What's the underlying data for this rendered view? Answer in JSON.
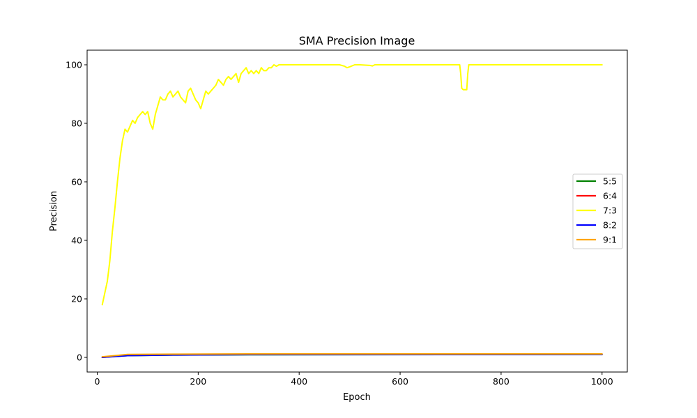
{
  "chart_data": {
    "type": "line",
    "title": "SMA Precision Image",
    "xlabel": "Epoch",
    "ylabel": "Precision",
    "xlim": [
      -20,
      1050
    ],
    "ylim": [
      -5,
      105
    ],
    "xticks": [
      0,
      200,
      400,
      600,
      800,
      1000
    ],
    "yticks": [
      0,
      20,
      40,
      60,
      80,
      100
    ],
    "grid": false,
    "legend_position": "center-right",
    "series": [
      {
        "name": "5:5",
        "color": "#008000",
        "x": [
          10,
          60,
          150,
          300,
          1000
        ],
        "y": [
          0.1,
          0.6,
          0.8,
          0.9,
          1.0
        ]
      },
      {
        "name": "6:4",
        "color": "#ff0000",
        "x": [
          10,
          60,
          150,
          300,
          1000
        ],
        "y": [
          0.0,
          0.7,
          0.9,
          1.0,
          1.1
        ]
      },
      {
        "name": "7:3",
        "color": "#ffff00",
        "x": [
          10,
          15,
          20,
          25,
          30,
          35,
          40,
          45,
          50,
          55,
          60,
          65,
          70,
          75,
          80,
          85,
          90,
          95,
          100,
          105,
          110,
          115,
          120,
          125,
          130,
          135,
          140,
          145,
          150,
          155,
          160,
          165,
          170,
          175,
          180,
          185,
          190,
          195,
          200,
          205,
          210,
          215,
          220,
          225,
          230,
          235,
          240,
          245,
          250,
          255,
          260,
          265,
          270,
          275,
          280,
          285,
          290,
          295,
          300,
          305,
          310,
          315,
          320,
          325,
          330,
          335,
          340,
          345,
          350,
          355,
          360,
          370,
          380,
          390,
          400,
          410,
          420,
          450,
          480,
          490,
          495,
          500,
          510,
          520,
          540,
          545,
          550,
          560,
          600,
          650,
          700,
          718,
          720,
          722,
          725,
          732,
          734,
          736,
          740,
          800,
          900,
          1000
        ],
        "y": [
          18,
          22,
          26,
          33,
          43,
          51,
          60,
          68,
          74,
          78,
          77,
          79,
          81,
          80,
          82,
          83,
          84,
          83,
          84,
          80,
          78,
          83,
          86,
          89,
          88,
          88,
          90,
          91,
          89,
          90,
          91,
          89,
          88,
          87,
          91,
          92,
          90,
          88,
          87,
          85,
          88,
          91,
          90,
          91,
          92,
          93,
          95,
          94,
          93,
          95,
          96,
          95,
          96,
          97,
          94,
          97,
          98,
          99,
          97,
          98,
          97,
          98,
          97,
          99,
          98,
          98,
          99,
          99,
          100,
          99.5,
          100,
          100,
          100,
          100,
          100,
          100,
          100,
          100,
          100,
          99.5,
          99,
          99.3,
          100,
          100,
          99.8,
          99.6,
          100,
          100,
          100,
          100,
          100,
          100,
          97,
          92,
          91.5,
          91.5,
          97,
          100,
          100,
          100,
          100,
          100
        ]
      },
      {
        "name": "8:2",
        "color": "#0000ff",
        "x": [
          10,
          60,
          150,
          300,
          1000
        ],
        "y": [
          0.0,
          0.6,
          0.8,
          0.95,
          1.0
        ]
      },
      {
        "name": "9:1",
        "color": "#ffa500",
        "x": [
          10,
          60,
          150,
          300,
          1000
        ],
        "y": [
          0.2,
          1.0,
          1.1,
          1.2,
          1.2
        ]
      }
    ]
  }
}
